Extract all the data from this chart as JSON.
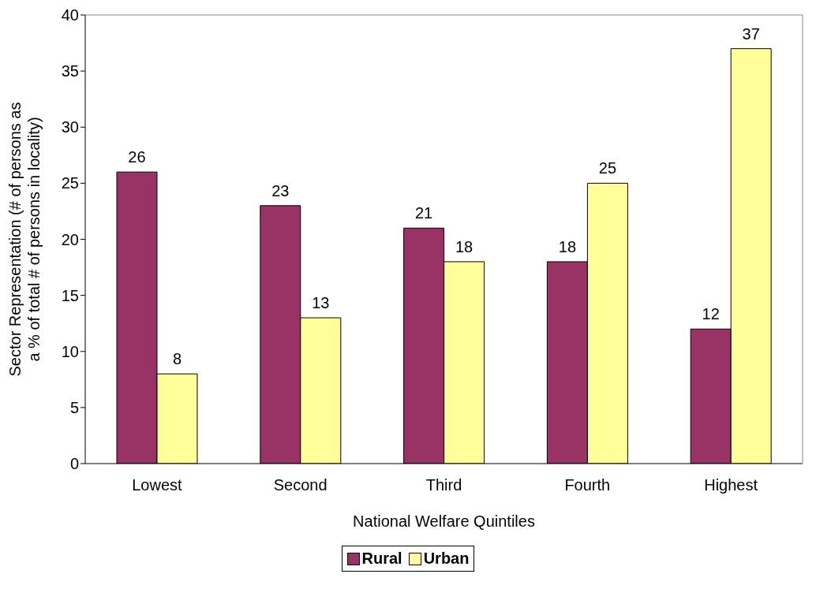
{
  "chart_data": {
    "type": "bar",
    "xlabel": "National Welfare Quintiles",
    "ylabel": "Sector Representation (# of persons as a % of total # of persons in locality)",
    "categories": [
      "Lowest",
      "Second",
      "Third",
      "Fourth",
      "Highest"
    ],
    "series": [
      {
        "name": "Rural",
        "color": "#993366",
        "values": [
          26,
          23,
          21,
          18,
          12
        ]
      },
      {
        "name": "Urban",
        "color": "#ffff99",
        "values": [
          8,
          13,
          18,
          25,
          37
        ]
      }
    ],
    "ylim": [
      0,
      40
    ],
    "yticks": [
      0,
      5,
      10,
      15,
      20,
      25,
      30,
      35,
      40
    ],
    "legend": "bottom",
    "data_labels": true
  }
}
